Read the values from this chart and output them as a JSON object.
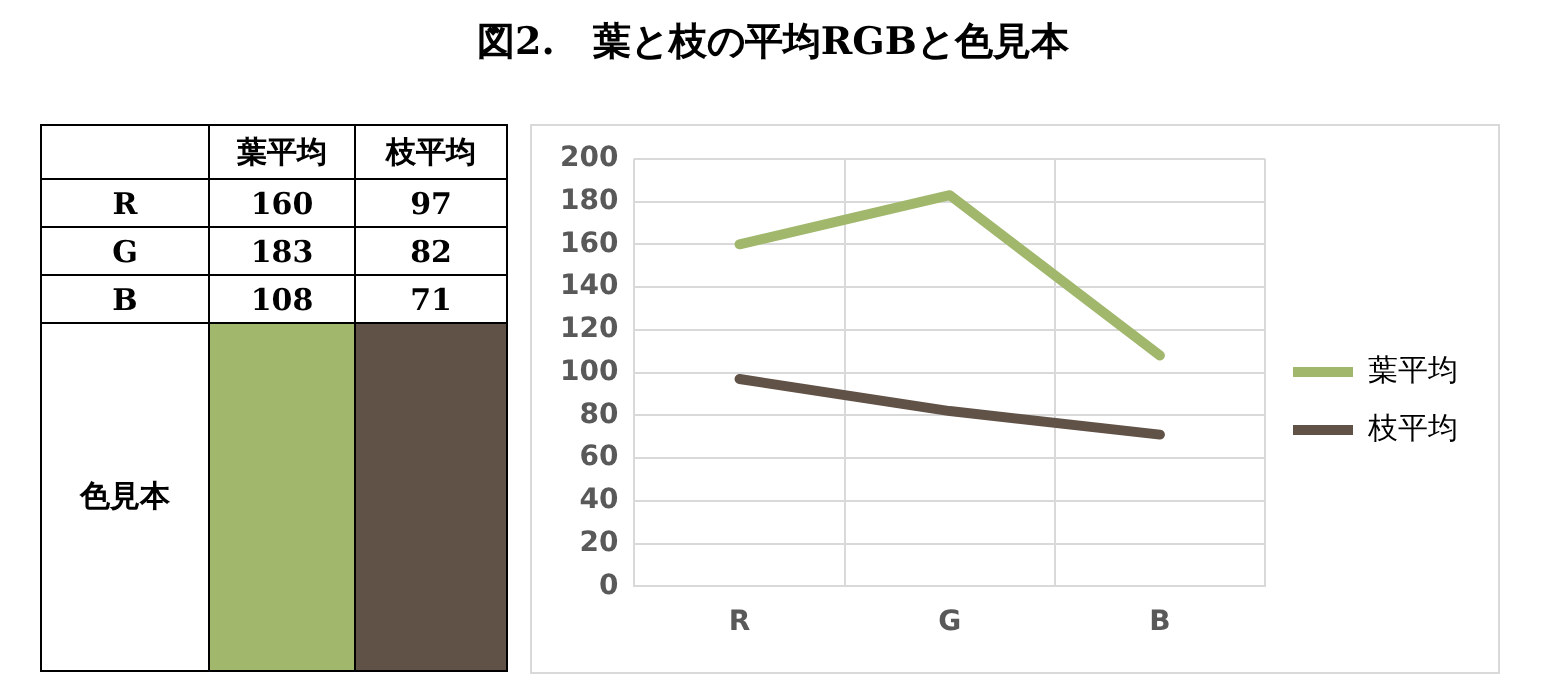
{
  "chart_data": [
    {
      "type": "other",
      "title": "図2.　葉と枝の平均RGBと色見本",
      "annotations": [
        "葉平均",
        "枝平均",
        "R",
        "160",
        "97",
        "G",
        "183",
        "82",
        "B",
        "108",
        "71",
        "色見本"
      ]
    },
    {
      "type": "line",
      "categories": [
        "R",
        "G",
        "B"
      ],
      "series": [
        {
          "name": "葉平均",
          "color": "#a0b76c",
          "values": [
            160,
            183,
            108
          ]
        },
        {
          "name": "枝平均",
          "color": "#615247",
          "values": [
            97,
            82,
            71
          ]
        }
      ],
      "ylim": [
        0,
        200
      ],
      "yticks": [
        0,
        20,
        40,
        60,
        80,
        100,
        120,
        140,
        160,
        180,
        200
      ],
      "grid": true,
      "legend": "right",
      "marker": "none",
      "line_style": "solid"
    }
  ]
}
